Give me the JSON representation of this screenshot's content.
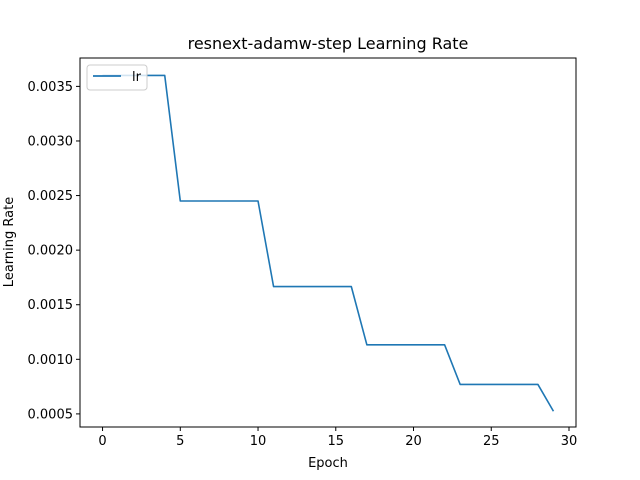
{
  "chart_data": {
    "type": "line",
    "title": "resnext-adamw-step  Learning Rate",
    "xlabel": "Epoch",
    "ylabel": "Learning Rate",
    "xlim": [
      -1.45,
      30.45
    ],
    "ylim": [
      0.00038,
      0.00376
    ],
    "xticks": [
      0,
      5,
      10,
      15,
      20,
      25,
      30
    ],
    "xtick_labels": [
      "0",
      "5",
      "10",
      "15",
      "20",
      "25",
      "30"
    ],
    "yticks": [
      0.0005,
      0.001,
      0.0015,
      0.002,
      0.0025,
      0.003,
      0.0035
    ],
    "ytick_labels": [
      "0.0005",
      "0.0010",
      "0.0015",
      "0.0020",
      "0.0025",
      "0.0030",
      "0.0035"
    ],
    "legend_position": "upper-left",
    "grid": false,
    "series": [
      {
        "name": "lr",
        "color": "#1f77b4",
        "x": [
          0,
          1,
          2,
          3,
          4,
          5,
          6,
          7,
          8,
          9,
          10,
          11,
          12,
          13,
          14,
          15,
          16,
          17,
          18,
          19,
          20,
          21,
          22,
          23,
          24,
          25,
          26,
          27,
          28,
          29
        ],
        "y": [
          0.0036,
          0.0036,
          0.0036,
          0.0036,
          0.0036,
          0.00245,
          0.00245,
          0.00245,
          0.00245,
          0.00245,
          0.00245,
          0.001666,
          0.001666,
          0.001666,
          0.001666,
          0.001666,
          0.001666,
          0.001133,
          0.001133,
          0.001133,
          0.001133,
          0.001133,
          0.001133,
          0.00077,
          0.00077,
          0.00077,
          0.00077,
          0.00077,
          0.00077,
          0.000524
        ]
      }
    ]
  }
}
